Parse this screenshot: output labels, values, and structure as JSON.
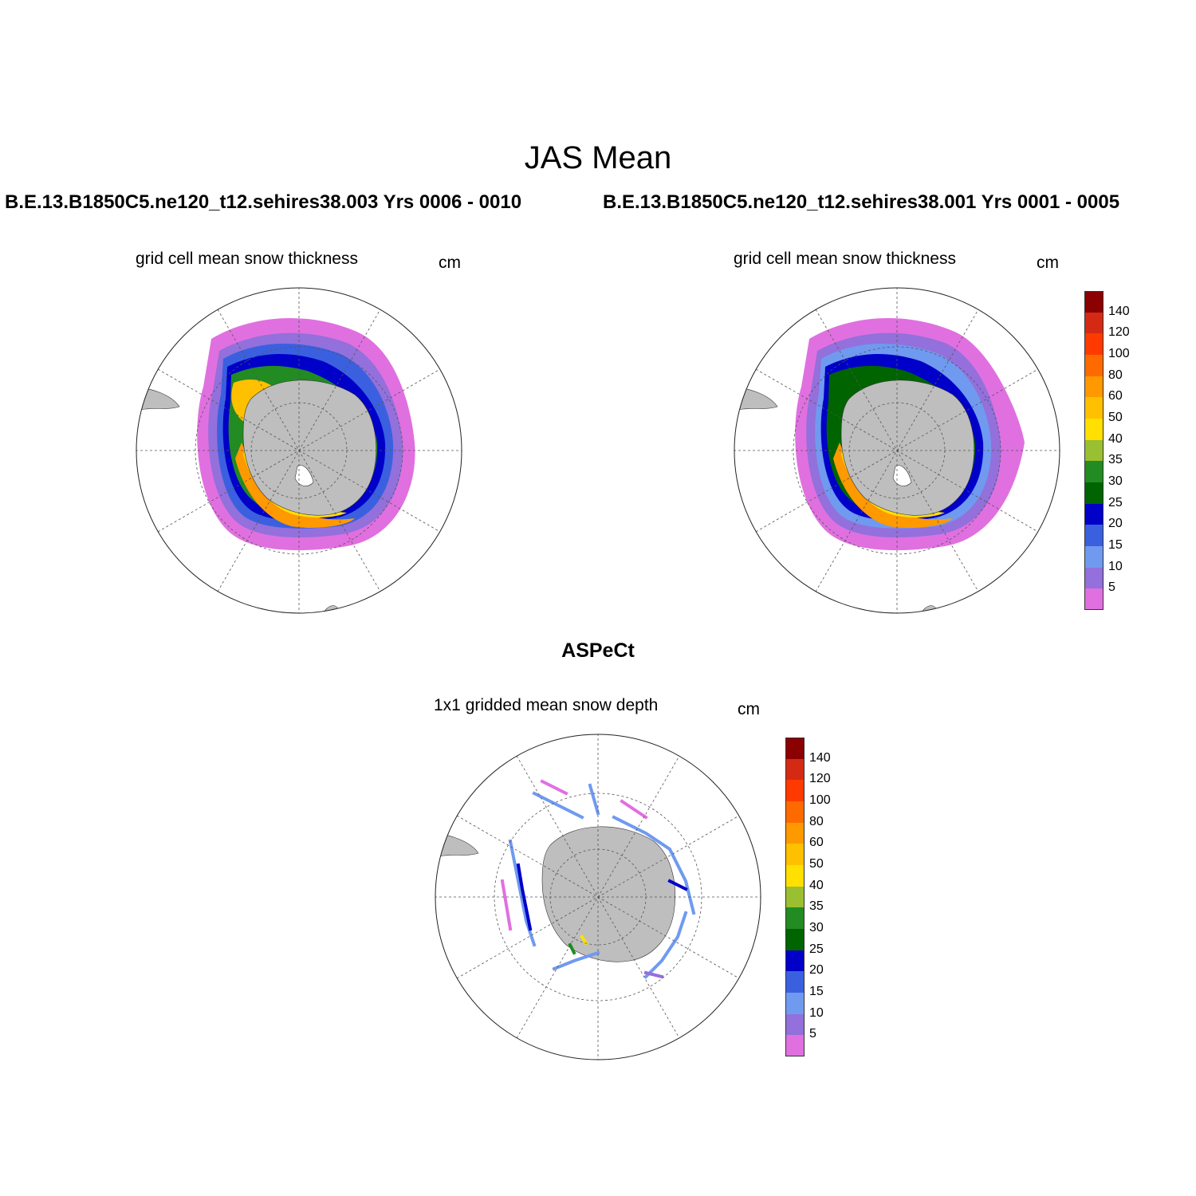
{
  "title": "JAS Mean",
  "panels": [
    {
      "case_label": "B.E.13.B1850C5.ne120_t12.sehires38.003  Yrs 0006 - 0010",
      "subtitle": "grid cell mean snow thickness",
      "units": "cm"
    },
    {
      "case_label": "B.E.13.B1850C5.ne120_t12.sehires38.001  Yrs 0001 - 0005",
      "subtitle": "grid cell mean snow thickness",
      "units": "cm"
    }
  ],
  "obs_panel": {
    "title": "ASPeCt",
    "subtitle": "1x1 gridded mean snow depth",
    "units": "cm"
  },
  "colorbar": {
    "labels": [
      "140",
      "120",
      "100",
      "80",
      "60",
      "50",
      "40",
      "35",
      "30",
      "25",
      "20",
      "15",
      "10",
      "5"
    ],
    "colors": [
      "#8b0000",
      "#d42a14",
      "#ff3a00",
      "#ff6a00",
      "#ff9900",
      "#ffc000",
      "#ffe000",
      "#9abf30",
      "#228b22",
      "#006400",
      "#0000c8",
      "#3a60e0",
      "#6f9af0",
      "#9370db",
      "#e070e0"
    ]
  },
  "map_colors": {
    "land": "#bebebe",
    "ocean": "#ffffff",
    "grid": "#555555"
  }
}
